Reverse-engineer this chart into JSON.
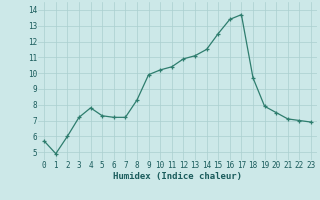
{
  "x": [
    0,
    1,
    2,
    3,
    4,
    5,
    6,
    7,
    8,
    9,
    10,
    11,
    12,
    13,
    14,
    15,
    16,
    17,
    18,
    19,
    20,
    21,
    22,
    23
  ],
  "y": [
    5.7,
    4.9,
    6.0,
    7.2,
    7.8,
    7.3,
    7.2,
    7.2,
    8.3,
    9.9,
    10.2,
    10.4,
    10.9,
    11.1,
    11.5,
    12.5,
    13.4,
    13.7,
    9.7,
    7.9,
    7.5,
    7.1,
    7.0,
    6.9
  ],
  "xlabel": "Humidex (Indice chaleur)",
  "xlim": [
    -0.5,
    23.5
  ],
  "ylim": [
    4.5,
    14.5
  ],
  "yticks": [
    5,
    6,
    7,
    8,
    9,
    10,
    11,
    12,
    13,
    14
  ],
  "xticks": [
    0,
    1,
    2,
    3,
    4,
    5,
    6,
    7,
    8,
    9,
    10,
    11,
    12,
    13,
    14,
    15,
    16,
    17,
    18,
    19,
    20,
    21,
    22,
    23
  ],
  "line_color": "#2e7d6e",
  "marker": "+",
  "bg_color": "#cce8e8",
  "grid_color": "#aacfcf",
  "tick_color": "#1a5c5c",
  "axis_label_color": "#1a5c5c",
  "tick_fontsize": 5.5,
  "xlabel_fontsize": 6.5
}
